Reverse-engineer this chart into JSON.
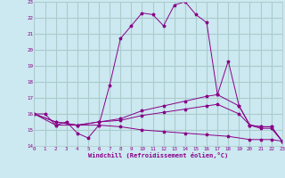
{
  "xlabel": "Windchill (Refroidissement éolien,°C)",
  "bg_color": "#cce8f0",
  "grid_color": "#aacccc",
  "line_color": "#880088",
  "xmin": 0,
  "xmax": 23,
  "ymin": 14,
  "ymax": 23,
  "line1": [
    [
      0,
      16.0
    ],
    [
      1,
      16.0
    ],
    [
      2,
      15.3
    ],
    [
      3,
      15.5
    ],
    [
      4,
      14.8
    ],
    [
      5,
      14.5
    ],
    [
      6,
      15.3
    ],
    [
      7,
      17.8
    ],
    [
      8,
      20.7
    ],
    [
      9,
      21.5
    ],
    [
      10,
      22.3
    ],
    [
      11,
      22.2
    ],
    [
      12,
      21.5
    ],
    [
      13,
      22.8
    ],
    [
      14,
      23.0
    ],
    [
      15,
      22.2
    ],
    [
      16,
      21.7
    ],
    [
      17,
      17.2
    ],
    [
      18,
      19.3
    ],
    [
      19,
      16.5
    ],
    [
      20,
      15.3
    ],
    [
      21,
      15.2
    ],
    [
      22,
      15.2
    ],
    [
      23,
      14.3
    ]
  ],
  "line2": [
    [
      0,
      16.0
    ],
    [
      2,
      15.3
    ],
    [
      4,
      15.3
    ],
    [
      6,
      15.5
    ],
    [
      8,
      15.7
    ],
    [
      10,
      16.2
    ],
    [
      12,
      16.5
    ],
    [
      14,
      16.8
    ],
    [
      16,
      17.1
    ],
    [
      17,
      17.2
    ],
    [
      19,
      16.5
    ],
    [
      20,
      15.3
    ],
    [
      21,
      15.2
    ],
    [
      22,
      15.2
    ],
    [
      23,
      14.3
    ]
  ],
  "line3": [
    [
      0,
      16.0
    ],
    [
      2,
      15.5
    ],
    [
      4,
      15.3
    ],
    [
      6,
      15.5
    ],
    [
      8,
      15.6
    ],
    [
      10,
      15.9
    ],
    [
      12,
      16.1
    ],
    [
      14,
      16.3
    ],
    [
      16,
      16.5
    ],
    [
      17,
      16.6
    ],
    [
      19,
      16.0
    ],
    [
      20,
      15.3
    ],
    [
      21,
      15.1
    ],
    [
      22,
      15.1
    ],
    [
      23,
      14.3
    ]
  ],
  "line4": [
    [
      0,
      16.0
    ],
    [
      2,
      15.5
    ],
    [
      4,
      15.3
    ],
    [
      6,
      15.3
    ],
    [
      8,
      15.2
    ],
    [
      10,
      15.0
    ],
    [
      12,
      14.9
    ],
    [
      14,
      14.8
    ],
    [
      16,
      14.7
    ],
    [
      18,
      14.6
    ],
    [
      20,
      14.4
    ],
    [
      21,
      14.4
    ],
    [
      22,
      14.4
    ],
    [
      23,
      14.3
    ]
  ]
}
